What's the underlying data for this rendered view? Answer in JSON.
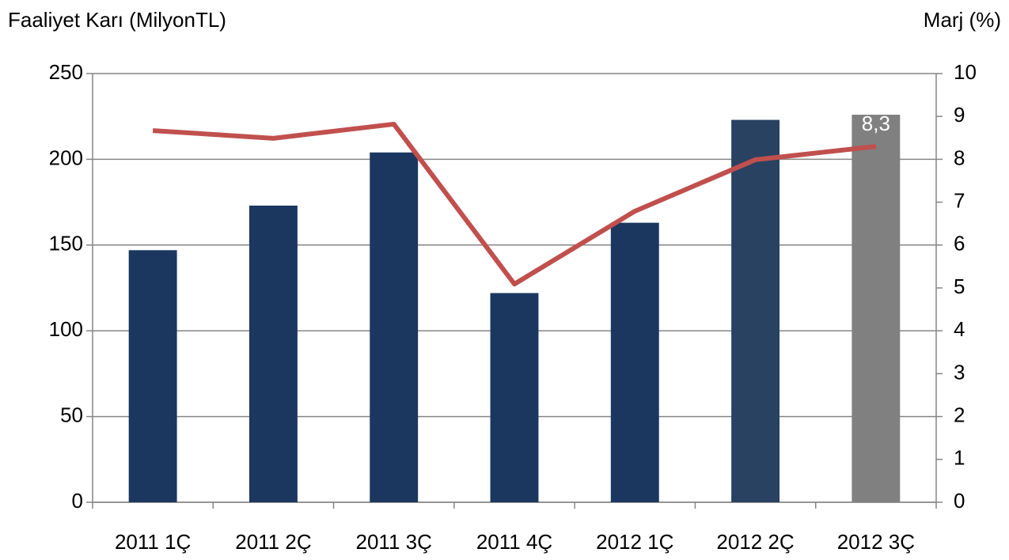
{
  "chart_data": {
    "type": "bar_line",
    "y_label": "Faaliyet Karı (MilyonTL)",
    "y2_label": "Marj (%)",
    "categories": [
      "2011 1Ç",
      "2011 2Ç",
      "2011 3Ç",
      "2011 4Ç",
      "2012 1Ç",
      "2012 2Ç",
      "2012 3Ç"
    ],
    "series": [
      {
        "type": "bar",
        "colors": [
          "#1b375f",
          "#1b375f",
          "#1b375f",
          "#1b375f",
          "#1b375f",
          "#2a4262",
          "#808080"
        ],
        "values": [
          147,
          173,
          204,
          122,
          163,
          223,
          226
        ]
      },
      {
        "type": "line",
        "axis": "y2",
        "color": "#c0504d",
        "values": [
          8.67,
          8.49,
          8.82,
          5.09,
          6.79,
          7.99,
          8.3
        ],
        "value_labels": [
          null,
          null,
          null,
          null,
          null,
          null,
          "8,3"
        ]
      }
    ],
    "ylim": [
      0,
      250
    ],
    "yticks": [
      0,
      50,
      100,
      150,
      200,
      250
    ],
    "y2lim": [
      0,
      10
    ],
    "y2ticks": [
      0,
      1,
      2,
      3,
      4,
      5,
      6,
      7,
      8,
      9,
      10
    ],
    "grid": true
  }
}
